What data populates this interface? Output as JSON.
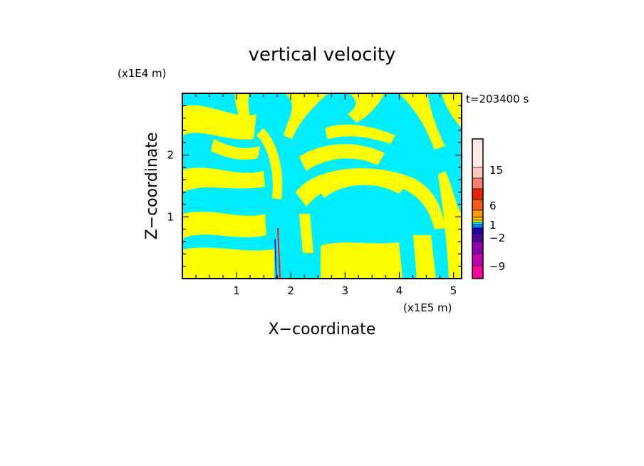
{
  "chart_data": {
    "type": "heatmap",
    "title": "vertical velocity",
    "xlabel": "X−coordinate",
    "ylabel": "Z−coordinate",
    "x_scale_label": "(x1E5 m)",
    "y_scale_label": "(x1E4 m)",
    "time_label": "t=203400 s",
    "xlim": [
      0,
      5.15
    ],
    "ylim": [
      0,
      3
    ],
    "x_ticks": [
      "1",
      "2",
      "3",
      "4",
      "5"
    ],
    "x_tick_values": [
      1,
      2,
      3,
      4,
      5
    ],
    "y_ticks": [
      "1",
      "2"
    ],
    "y_tick_values": [
      1,
      2
    ],
    "field_colors": {
      "positive": "#ffff00",
      "negative": "#00eeff",
      "frame": "#000000"
    },
    "colorbar": {
      "labels": [
        "15",
        "6",
        "1",
        "−2",
        "−9"
      ],
      "colors": [
        "#ffe8e8",
        "#ffc8c0",
        "#f88070",
        "#e82010",
        "#f06010",
        "#ff9900",
        "#ffcc00",
        "#ffff00",
        "#00eeff",
        "#0080ff",
        "#2000b0",
        "#5000a0",
        "#9000b0",
        "#c000b0",
        "#ff00a0"
      ]
    }
  }
}
